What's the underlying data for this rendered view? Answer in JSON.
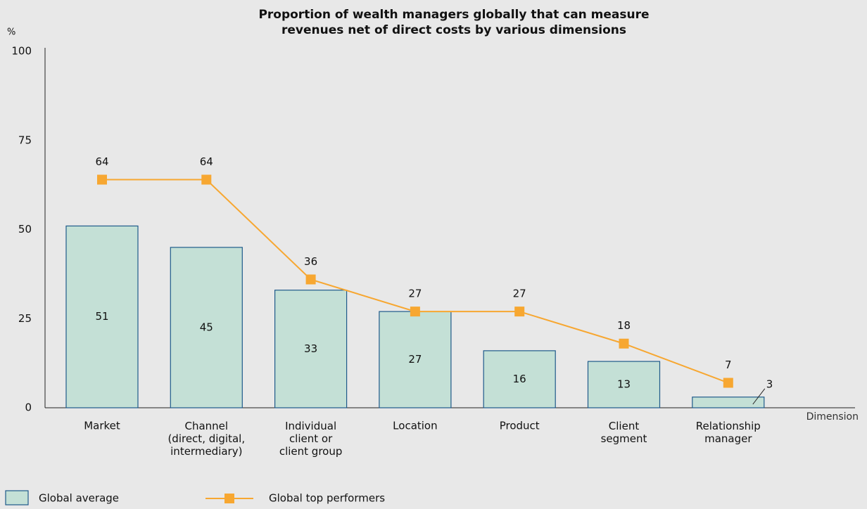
{
  "chart_data": {
    "type": "bar",
    "title": "Proportion of wealth managers globally that can measure\nrevenues net of direct costs by various dimensions",
    "y_label": "%",
    "x_label": "Dimension",
    "categories": [
      "Market",
      "Channel\n(direct, digital,\nintermediary)",
      "Individual\nclient or\nclient group",
      "Location",
      "Product",
      "Client\nsegment",
      "Relationship\nmanager"
    ],
    "series": [
      {
        "name": "Global average",
        "type": "bar",
        "color": "#c4e0d6",
        "values": [
          51,
          45,
          33,
          27,
          16,
          13,
          3
        ]
      },
      {
        "name": "Global top performers",
        "type": "line",
        "color": "#f7a731",
        "values": [
          64,
          64,
          36,
          27,
          27,
          18,
          7
        ]
      }
    ],
    "ylim": [
      0,
      100
    ],
    "yticks": [
      0,
      25,
      50,
      75,
      100
    ],
    "grid": false,
    "legend": "bottom-left"
  }
}
